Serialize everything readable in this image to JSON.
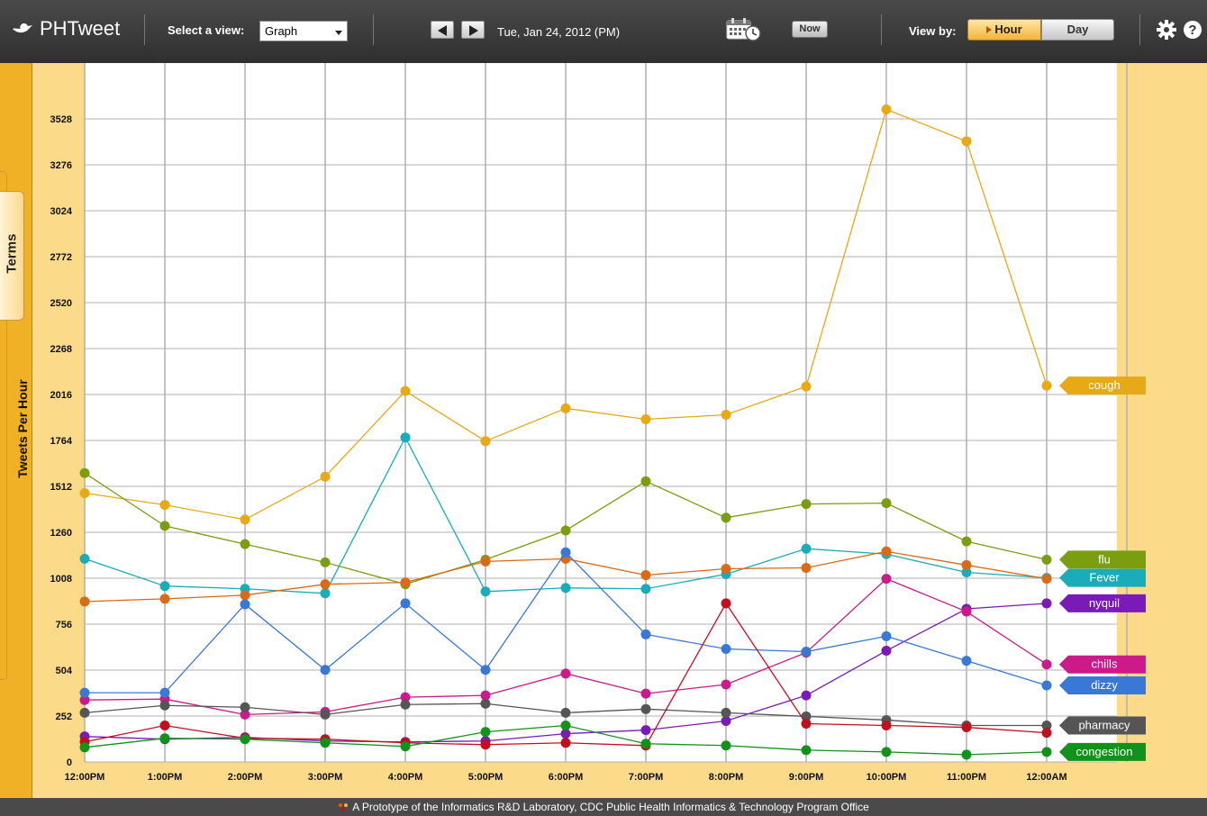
{
  "header": {
    "app_name": "PHTweet",
    "view_label": "Select a view:",
    "view_selected": "Graph",
    "date": "Tue, Jan 24, 2012 (PM)",
    "now_label": "Now",
    "viewby_label": "View by:",
    "hour_label": "Hour",
    "day_label": "Day"
  },
  "sidebar": {
    "tab_label": "Terms"
  },
  "footer": {
    "text": "A Prototype of the Informatics R&D Laboratory, CDC Public Health Informatics & Technology Program Office"
  },
  "colors": {
    "header_bg": "#3a3a3a",
    "panel": "#f0b126",
    "chart_bg": "#fbda8a",
    "accent": "#f2b53a"
  },
  "chart_data": {
    "type": "line",
    "ylabel": "Tweets Per Hour",
    "xlabel": "",
    "x": [
      "12:00PM",
      "1:00PM",
      "2:00PM",
      "3:00PM",
      "4:00PM",
      "5:00PM",
      "6:00PM",
      "7:00PM",
      "8:00PM",
      "9:00PM",
      "10:00PM",
      "11:00PM",
      "12:00AM"
    ],
    "yticks": [
      0,
      252,
      504,
      756,
      1008,
      1260,
      1512,
      1764,
      2016,
      2268,
      2520,
      2772,
      3024,
      3276,
      3528
    ],
    "ylim": [
      0,
      3528
    ],
    "grid": true,
    "legend": "right",
    "series": [
      {
        "name": "cough",
        "color": "#e8a916",
        "values": [
          1475,
          1410,
          1330,
          1565,
          2035,
          1760,
          1940,
          1880,
          1905,
          2060,
          3580,
          3405,
          2065
        ]
      },
      {
        "name": "flu",
        "color": "#7a9e10",
        "values": [
          1585,
          1295,
          1195,
          1095,
          975,
          1110,
          1270,
          1540,
          1340,
          1415,
          1420,
          1210,
          1110
        ]
      },
      {
        "name": "Fever",
        "color": "#1aacb8",
        "values": [
          1115,
          965,
          950,
          925,
          1780,
          935,
          955,
          950,
          1030,
          1170,
          1140,
          1040,
          1010
        ]
      },
      {
        "name": "",
        "color": "#d96a18",
        "values": [
          880,
          895,
          915,
          975,
          985,
          1100,
          1115,
          1025,
          1060,
          1065,
          1155,
          1080,
          1005
        ]
      },
      {
        "name": "nyquil",
        "color": "#7a1ab8",
        "values": [
          140,
          125,
          135,
          115,
          110,
          115,
          155,
          175,
          225,
          365,
          610,
          840,
          870
        ]
      },
      {
        "name": "chills",
        "color": "#cc1a8a",
        "values": [
          340,
          345,
          260,
          275,
          355,
          365,
          485,
          375,
          425,
          600,
          1005,
          825,
          535
        ]
      },
      {
        "name": "dizzy",
        "color": "#3a78d8",
        "values": [
          380,
          380,
          865,
          505,
          870,
          505,
          1150,
          700,
          620,
          605,
          690,
          555,
          420
        ]
      },
      {
        "name": "pharmacy",
        "color": "#555555",
        "values": [
          270,
          310,
          300,
          260,
          315,
          320,
          270,
          290,
          270,
          250,
          230,
          200,
          200
        ]
      },
      {
        "name": "",
        "color": "#c01020",
        "values": [
          110,
          200,
          130,
          125,
          105,
          95,
          105,
          90,
          870,
          210,
          200,
          190,
          160
        ]
      },
      {
        "name": "congestion",
        "color": "#12921a",
        "values": [
          80,
          130,
          125,
          105,
          85,
          165,
          200,
          100,
          90,
          65,
          55,
          40,
          55
        ]
      }
    ]
  }
}
